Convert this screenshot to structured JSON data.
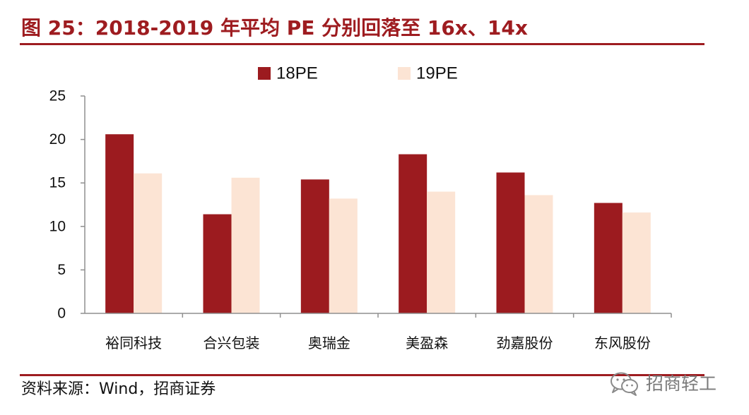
{
  "colors": {
    "accent": "#9e1c20",
    "axis": "#8f8f8f"
  },
  "chart_data": {
    "type": "bar",
    "title": "图 25：2018-2019 年平均 PE 分别回落至 16x、14x",
    "xlabel": "",
    "ylabel": "",
    "categories": [
      "裕同科技",
      "合兴包装",
      "奥瑞金",
      "美盈森",
      "劲嘉股份",
      "东风股份"
    ],
    "series": [
      {
        "name": "18PE",
        "color": "#9c1b1f",
        "values": [
          20.6,
          11.4,
          15.4,
          18.3,
          16.2,
          12.7
        ]
      },
      {
        "name": "19PE",
        "color": "#fce4d4",
        "values": [
          16.1,
          15.6,
          13.2,
          14.0,
          13.6,
          11.6
        ]
      }
    ],
    "yticks": [
      0,
      5,
      10,
      15,
      20,
      25
    ],
    "ylim": [
      0,
      25
    ],
    "grid": false,
    "legend": "top-center"
  },
  "source": "资料来源：Wind，招商证券",
  "watermark": {
    "text": "招商轻工",
    "icon": "wechat-icon"
  }
}
